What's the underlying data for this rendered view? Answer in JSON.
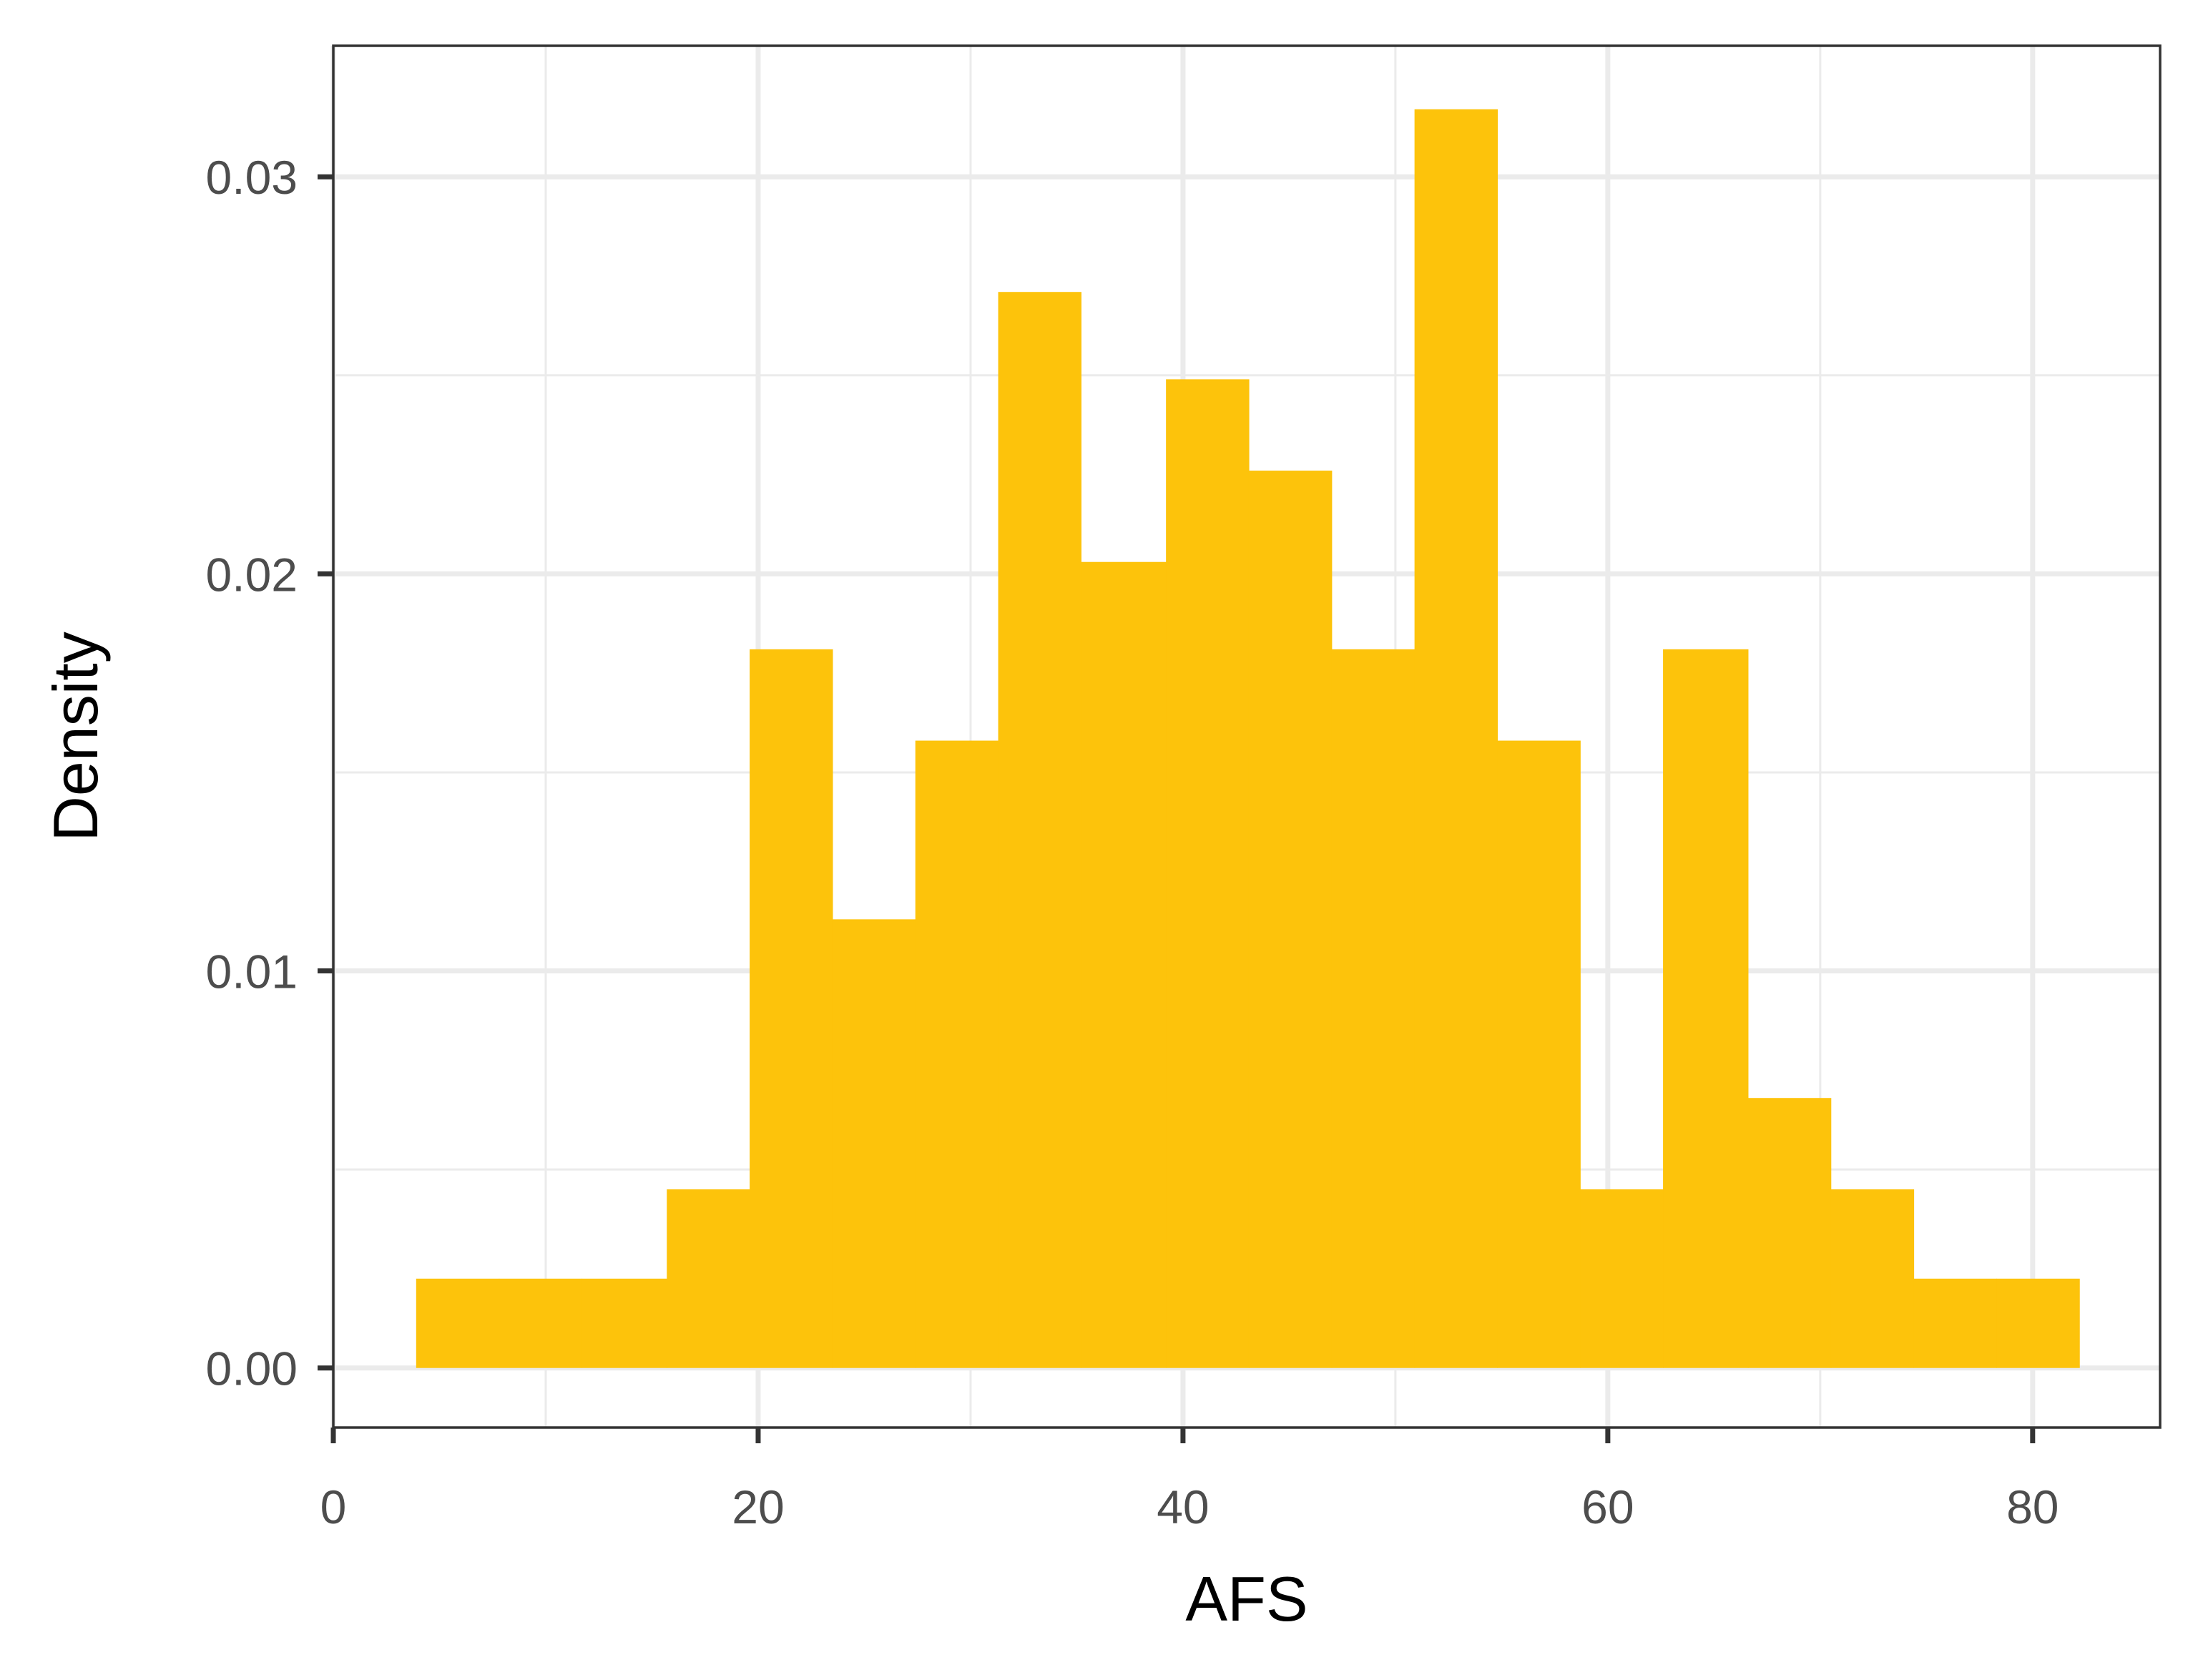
{
  "chart_data": {
    "type": "bar",
    "subtype": "histogram",
    "xlabel": "AFS",
    "ylabel": "Density",
    "xlim": [
      0,
      86
    ],
    "ylim": [
      -0.0015,
      0.0333
    ],
    "x_ticks": [
      0,
      20,
      40,
      60,
      80
    ],
    "x_tick_labels": [
      "0",
      "20",
      "40",
      "60",
      "80"
    ],
    "y_ticks": [
      0.0,
      0.01,
      0.02,
      0.03
    ],
    "y_tick_labels": [
      "0.00",
      "0.01",
      "0.02",
      "0.03"
    ],
    "x_minor_ticks": [
      10,
      30,
      50,
      70
    ],
    "y_minor_ticks": [
      0.005,
      0.015,
      0.025
    ],
    "grid": true,
    "bar_color": "#FDC30B",
    "bins": [
      {
        "x0": 3.9,
        "x1": 7.8,
        "density": 0.00225
      },
      {
        "x0": 7.8,
        "x1": 11.7,
        "density": 0.00225
      },
      {
        "x0": 11.7,
        "x1": 15.7,
        "density": 0.00225
      },
      {
        "x0": 15.7,
        "x1": 19.6,
        "density": 0.0045
      },
      {
        "x0": 19.6,
        "x1": 23.5,
        "density": 0.0181
      },
      {
        "x0": 23.5,
        "x1": 27.4,
        "density": 0.0113
      },
      {
        "x0": 27.4,
        "x1": 31.3,
        "density": 0.0158
      },
      {
        "x0": 31.3,
        "x1": 35.2,
        "density": 0.0271
      },
      {
        "x0": 35.2,
        "x1": 39.2,
        "density": 0.0203
      },
      {
        "x0": 39.2,
        "x1": 43.1,
        "density": 0.0249
      },
      {
        "x0": 43.1,
        "x1": 47.0,
        "density": 0.0226
      },
      {
        "x0": 47.0,
        "x1": 50.9,
        "density": 0.0181
      },
      {
        "x0": 50.9,
        "x1": 54.8,
        "density": 0.0317
      },
      {
        "x0": 54.8,
        "x1": 58.7,
        "density": 0.0158
      },
      {
        "x0": 58.7,
        "x1": 62.6,
        "density": 0.0045
      },
      {
        "x0": 62.6,
        "x1": 66.6,
        "density": 0.0181
      },
      {
        "x0": 66.6,
        "x1": 70.5,
        "density": 0.0068
      },
      {
        "x0": 70.5,
        "x1": 74.4,
        "density": 0.0045
      },
      {
        "x0": 74.4,
        "x1": 78.3,
        "density": 0.00225
      },
      {
        "x0": 78.3,
        "x1": 82.2,
        "density": 0.00225
      }
    ]
  }
}
